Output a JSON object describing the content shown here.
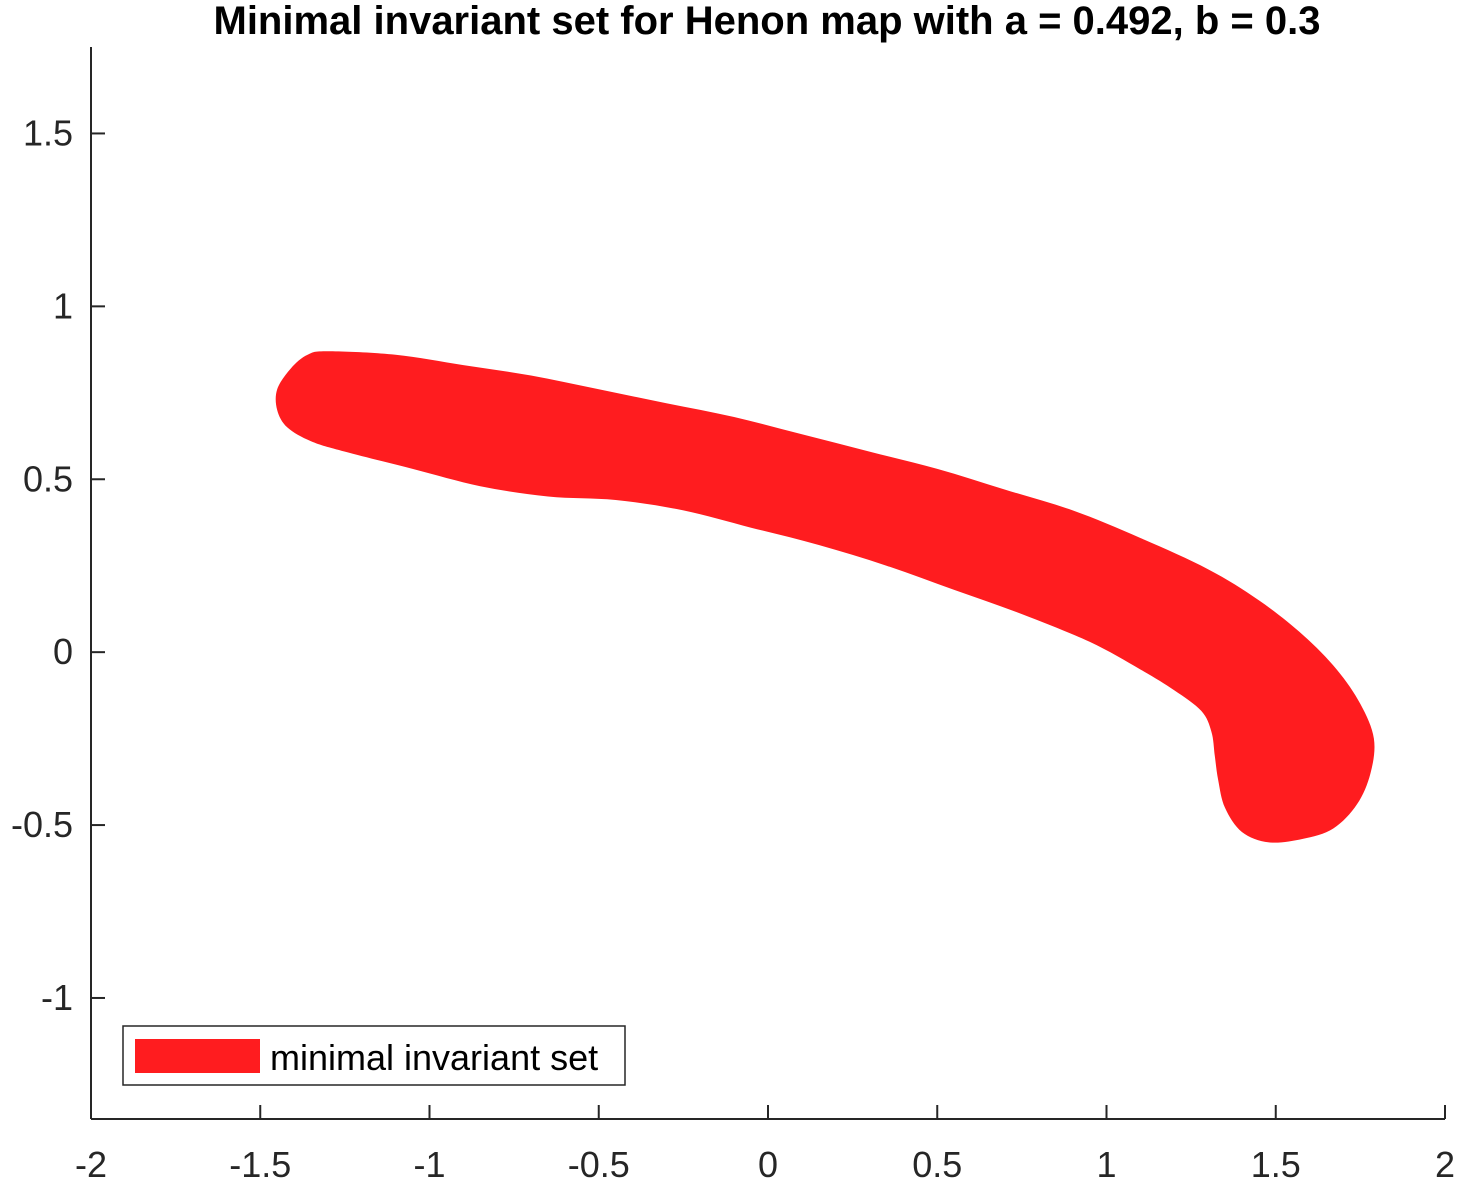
{
  "chart_data": {
    "type": "area",
    "title": "Minimal invariant set for Henon map with a = 0.492, b = 0.3",
    "xlabel": "",
    "ylabel": "",
    "xlim": [
      -2,
      2
    ],
    "ylim": [
      -1.35,
      1.75
    ],
    "xticks": [
      -2,
      -1.5,
      -1,
      -0.5,
      0,
      0.5,
      1,
      1.5,
      2
    ],
    "xtick_labels": [
      "-2",
      "-1.5",
      "-1",
      "-0.5",
      "0",
      "0.5",
      "1",
      "1.5",
      "2"
    ],
    "yticks": [
      -1,
      -0.5,
      0,
      0.5,
      1,
      1.5
    ],
    "ytick_labels": [
      "-1",
      "-0.5",
      "0",
      "0.5",
      "1",
      "1.5"
    ],
    "grid": false,
    "legend": {
      "position": "bottom-left",
      "entries": [
        "minimal invariant set"
      ]
    },
    "series": [
      {
        "name": "minimal invariant set",
        "color": "#ff1c1f",
        "polygon": [
          [
            -1.3,
            0.87
          ],
          [
            -1.1,
            0.86
          ],
          [
            -0.9,
            0.83
          ],
          [
            -0.7,
            0.8
          ],
          [
            -0.5,
            0.76
          ],
          [
            -0.3,
            0.72
          ],
          [
            -0.1,
            0.68
          ],
          [
            0.1,
            0.63
          ],
          [
            0.3,
            0.58
          ],
          [
            0.5,
            0.53
          ],
          [
            0.7,
            0.47
          ],
          [
            0.9,
            0.41
          ],
          [
            1.1,
            0.33
          ],
          [
            1.3,
            0.24
          ],
          [
            1.45,
            0.15
          ],
          [
            1.58,
            0.05
          ],
          [
            1.68,
            -0.05
          ],
          [
            1.75,
            -0.15
          ],
          [
            1.79,
            -0.25
          ],
          [
            1.78,
            -0.35
          ],
          [
            1.74,
            -0.44
          ],
          [
            1.67,
            -0.51
          ],
          [
            1.58,
            -0.54
          ],
          [
            1.48,
            -0.55
          ],
          [
            1.4,
            -0.52
          ],
          [
            1.35,
            -0.45
          ],
          [
            1.33,
            -0.37
          ],
          [
            1.32,
            -0.3
          ],
          [
            1.31,
            -0.23
          ],
          [
            1.28,
            -0.17
          ],
          [
            1.2,
            -0.11
          ],
          [
            1.1,
            -0.05
          ],
          [
            0.95,
            0.03
          ],
          [
            0.75,
            0.11
          ],
          [
            0.55,
            0.18
          ],
          [
            0.35,
            0.25
          ],
          [
            0.15,
            0.31
          ],
          [
            -0.05,
            0.36
          ],
          [
            -0.25,
            0.41
          ],
          [
            -0.45,
            0.44
          ],
          [
            -0.65,
            0.45
          ],
          [
            -0.85,
            0.48
          ],
          [
            -1.05,
            0.53
          ],
          [
            -1.25,
            0.58
          ],
          [
            -1.35,
            0.61
          ],
          [
            -1.42,
            0.65
          ],
          [
            -1.45,
            0.7
          ],
          [
            -1.45,
            0.76
          ],
          [
            -1.41,
            0.82
          ],
          [
            -1.36,
            0.86
          ]
        ]
      }
    ]
  }
}
